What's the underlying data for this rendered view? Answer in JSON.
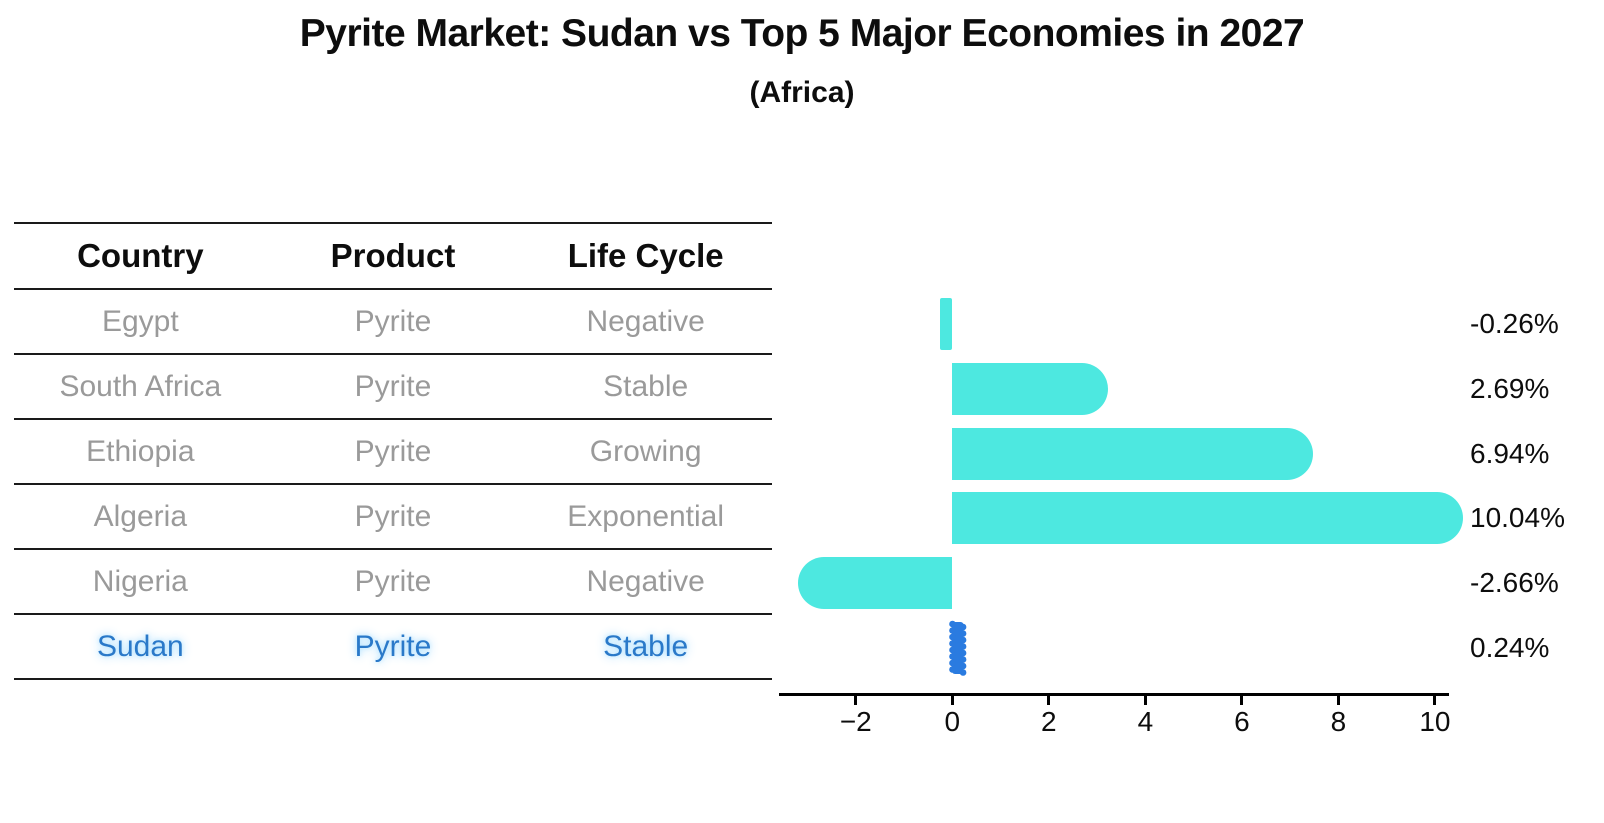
{
  "title": "Pyrite Market: Sudan vs Top 5 Major Economies in 2027",
  "subtitle": "(Africa)",
  "table": {
    "headers": [
      "Country",
      "Product",
      "Life Cycle"
    ],
    "rows": [
      {
        "country": "Egypt",
        "product": "Pyrite",
        "life_cycle": "Negative",
        "highlighted": false
      },
      {
        "country": "South Africa",
        "product": "Pyrite",
        "life_cycle": "Stable",
        "highlighted": false
      },
      {
        "country": "Ethiopia",
        "product": "Pyrite",
        "life_cycle": "Growing",
        "highlighted": false
      },
      {
        "country": "Algeria",
        "product": "Pyrite",
        "life_cycle": "Exponential",
        "highlighted": false
      },
      {
        "country": "Nigeria",
        "product": "Pyrite",
        "life_cycle": "Negative",
        "highlighted": false
      },
      {
        "country": "Sudan",
        "product": "Pyrite",
        "life_cycle": "Stable",
        "highlighted": true
      }
    ]
  },
  "chart_data": {
    "type": "bar",
    "orientation": "horizontal",
    "title": "Pyrite Market: Sudan vs Top 5 Major Economies in 2027",
    "subtitle": "(Africa)",
    "categories": [
      "Egypt",
      "South Africa",
      "Ethiopia",
      "Algeria",
      "Nigeria",
      "Sudan"
    ],
    "values": [
      -0.26,
      2.69,
      6.94,
      10.04,
      -2.66,
      0.24
    ],
    "value_labels": [
      "-0.26%",
      "2.69%",
      "6.94%",
      "10.04%",
      "-2.66%",
      "0.24%"
    ],
    "unit": "percent growth",
    "x_ticks": [
      -2,
      0,
      2,
      4,
      6,
      8,
      10
    ],
    "x_tick_labels": [
      "−2",
      "0",
      "2",
      "4",
      "6",
      "8",
      "10"
    ],
    "xlim": [
      -3.55,
      10.25
    ],
    "highlight_index": 5,
    "bar_color": "#4de8e0",
    "highlight_bar_color": "#2a7be0",
    "grid": false,
    "legend": false
  },
  "colors": {
    "background": "#ffffff",
    "table_text": "#9a9a9a",
    "table_header_text": "#0d0d0d",
    "highlight_text": "#2a79c9",
    "table_line": "#1a1a1a",
    "axis": "#000000"
  }
}
